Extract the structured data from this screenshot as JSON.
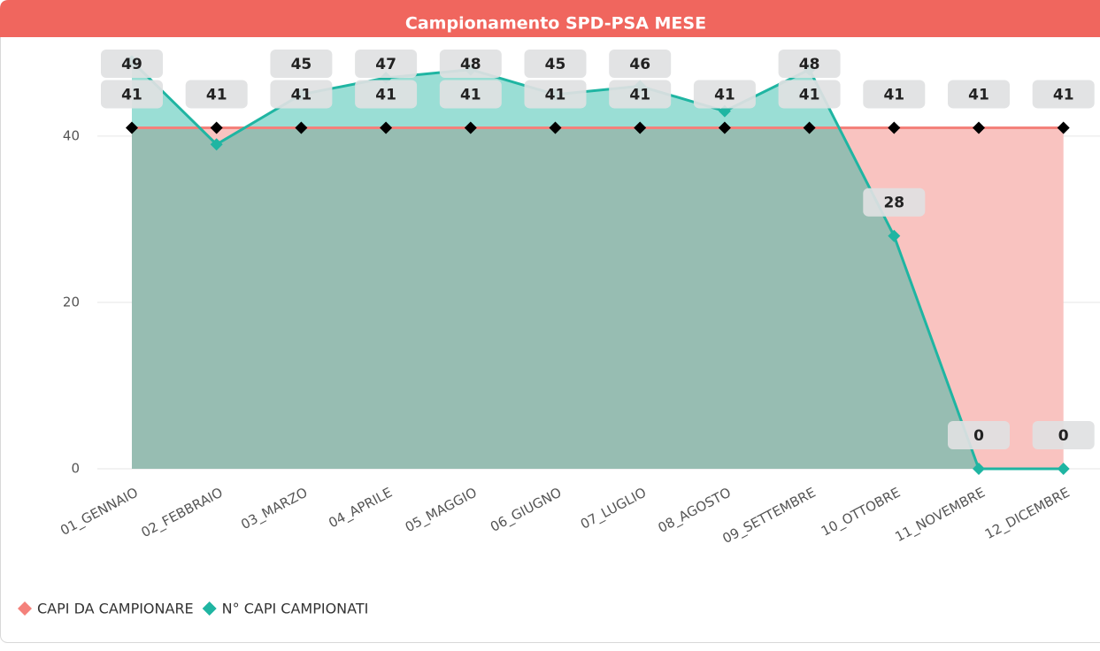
{
  "chart_data": {
    "type": "area",
    "title": "Campionamento SPD-PSA MESE",
    "categories": [
      "01_GENNAIO",
      "02_FEBBRAIO",
      "03_MARZO",
      "04_APRILE",
      "05_MAGGIO",
      "06_GIUGNO",
      "07_LUGLIO",
      "08_AGOSTO",
      "09_SETTEMBRE",
      "10_OTTOBRE",
      "11_NOVEMBRE",
      "12_DICEMBRE"
    ],
    "series": [
      {
        "name": "CAPI DA CAMPIONARE",
        "color": "#f4817b",
        "fill": "#f9c3c0",
        "marker_color": "#000000",
        "values": [
          41,
          41,
          41,
          41,
          41,
          41,
          41,
          41,
          41,
          41,
          41,
          41
        ],
        "value_labels": [
          "41",
          "41",
          "41",
          "41",
          "41",
          "41",
          "41",
          "41",
          "41",
          "41",
          "41",
          "41"
        ]
      },
      {
        "name": "N° CAPI CAMPIONATI",
        "color": "#1fb5a2",
        "fill": "#1fb5a2",
        "marker_color": "#1fb5a2",
        "values": [
          49,
          39,
          45,
          47,
          48,
          45,
          46,
          43,
          48,
          28,
          0,
          0
        ],
        "value_labels": [
          "49",
          null,
          "45",
          "47",
          "48",
          "45",
          "46",
          null,
          "48",
          "28",
          "0",
          "0"
        ]
      }
    ],
    "ylim": [
      0,
      52
    ],
    "yticks": [
      0,
      20,
      40
    ],
    "grid": true,
    "legend": "bottom-left"
  }
}
